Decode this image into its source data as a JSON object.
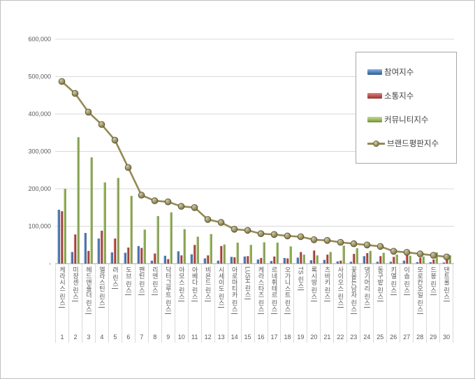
{
  "legend": {
    "participation": "참여지수",
    "communication": "소통지수",
    "community": "커뮤니티지수",
    "reputation": "브랜드평판지수"
  },
  "colors": {
    "participation": "#4f81bd",
    "communication": "#c0504d",
    "community": "#9bbb59",
    "reputation": "#948a54",
    "gridline": "#d9d9d9",
    "axis_line": "#a6a6a6",
    "tick_text": "#595959"
  },
  "chart_data": {
    "type": "bar",
    "title": "",
    "xlabel": "",
    "ylabel": "",
    "ylim": [
      0,
      600000
    ],
    "ytick_step": 100000,
    "ytick_labels": [
      "-",
      "100,000",
      "200,000",
      "300,000",
      "400,000",
      "500,000",
      "600,000"
    ],
    "grid": true,
    "legend_position": "right-inside",
    "categories": [
      "케라시스 린스",
      "미쟝센 린스",
      "헤드앤숄더 린스",
      "엘라스틴 린스",
      "려 린스",
      "도브 린스",
      "팬틴 린스",
      "리엔 린스",
      "닥터그루트 린스",
      "아모스 린스",
      "아베다 린스",
      "비욘드 린스",
      "시세이도 린스",
      "아로마티카 린스",
      "LUSH 린스",
      "케라스타즈 린스",
      "르네휘테르 린스",
      "오가니스트 린스",
      "TS 린스",
      "록시땅 린스",
      "츠바키 린스",
      "사이오스 린스",
      "꽃을든남자 린스",
      "댕기머리 린스",
      "동구밭 린스",
      "키엘 린스",
      "이솝 린스",
      "모로칸오일 린스",
      "드봉 린스",
      "댄트롤 린스"
    ],
    "rank_labels": [
      "1",
      "2",
      "3",
      "4",
      "5",
      "6",
      "7",
      "8",
      "9",
      "10",
      "11",
      "12",
      "13",
      "14",
      "15",
      "16",
      "17",
      "18",
      "19",
      "20",
      "21",
      "22",
      "23",
      "24",
      "25",
      "26",
      "27",
      "28",
      "29",
      "30"
    ],
    "series": [
      {
        "name": "참여지수",
        "type": "bar",
        "color": "#4f81bd",
        "values": [
          144000,
          31000,
          82000,
          67000,
          30000,
          29000,
          47000,
          8000,
          21000,
          33000,
          25000,
          14000,
          8000,
          18000,
          19000,
          11000,
          7000,
          15000,
          16000,
          9000,
          10000,
          6000,
          5000,
          20000,
          5000,
          5000,
          8000,
          4000,
          4000,
          3000
        ]
      },
      {
        "name": "소통지수",
        "type": "bar",
        "color": "#c0504d",
        "values": [
          140000,
          78000,
          34000,
          88000,
          67000,
          43000,
          42000,
          27000,
          12000,
          22000,
          50000,
          22000,
          47000,
          17000,
          20000,
          15000,
          19000,
          14000,
          31000,
          35000,
          24000,
          8000,
          26000,
          28000,
          20000,
          18000,
          24000,
          16000,
          11000,
          12000
        ]
      },
      {
        "name": "커뮤니티지수",
        "type": "bar",
        "color": "#9bbb59",
        "values": [
          200000,
          338000,
          284000,
          217000,
          229000,
          181000,
          91000,
          127000,
          137000,
          92000,
          72000,
          79000,
          51000,
          56000,
          50000,
          57000,
          56000,
          46000,
          24000,
          22000,
          31000,
          48000,
          41000,
          34000,
          29000,
          24000,
          21000,
          19000,
          30000,
          22000
        ]
      },
      {
        "name": "브랜드평판지수",
        "type": "line",
        "color": "#948a54",
        "values": [
          487000,
          455000,
          405000,
          372000,
          330000,
          257000,
          183000,
          168000,
          165000,
          153000,
          150000,
          118000,
          110000,
          92000,
          89000,
          80000,
          78000,
          74000,
          72000,
          64000,
          62000,
          57000,
          53000,
          50000,
          46000,
          33000,
          30000,
          26000,
          22000,
          18000
        ]
      }
    ]
  }
}
